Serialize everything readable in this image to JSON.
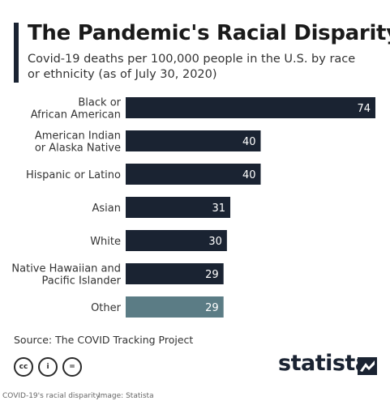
{
  "title": "The Pandemic's Racial Disparity",
  "subtitle": "Covid-19 deaths per 100,000 people in the U.S. by race or ethnicity (as of July 30, 2020)",
  "source": "Source: The COVID Tracking Project",
  "brand": "statista",
  "license_icons": [
    "cc-icon",
    "person-icon",
    "equals-icon"
  ],
  "license_glyphs": [
    "cc",
    "i",
    "="
  ],
  "footer": {
    "caption": "COVID-19's racial disparity",
    "credit": "Image: Statista"
  },
  "colors": {
    "bar": "#1a2332",
    "bar_highlight": "#5b7c85",
    "label": "#333333",
    "value": "#ffffff"
  },
  "chart_data": {
    "type": "bar",
    "orientation": "horizontal",
    "title": "The Pandemic's Racial Disparity",
    "categories": [
      [
        "Black or",
        "African American"
      ],
      [
        "American Indian",
        "or Alaska Native"
      ],
      [
        "Hispanic or Latino"
      ],
      [
        "Asian"
      ],
      [
        "White"
      ],
      [
        "Native Hawaiian and",
        "Pacific Islander"
      ],
      [
        "Other"
      ]
    ],
    "values": [
      74,
      40,
      40,
      31,
      30,
      29,
      29
    ],
    "highlight_index": 6,
    "xlim": [
      0,
      74
    ],
    "grid": false,
    "legend": "none"
  }
}
